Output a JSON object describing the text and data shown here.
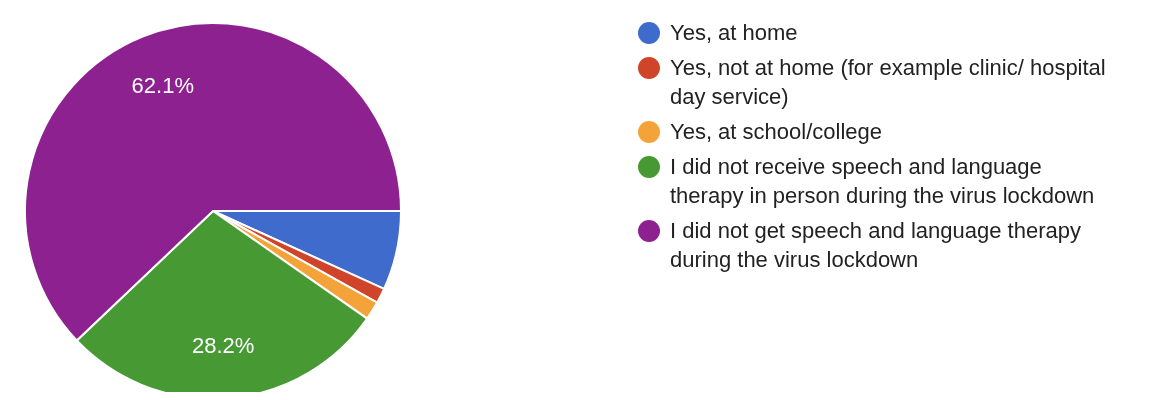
{
  "chart_data": {
    "type": "pie",
    "categories": [
      "Yes, at home",
      "Yes, not at home (for example clinic/ hospital day service)",
      "Yes, at school/college",
      "I did not receive speech and language therapy in person during the virus lockdown",
      "I did not get speech and language therapy during the virus lockdown"
    ],
    "values": [
      6.8,
      1.3,
      1.6,
      28.2,
      62.1
    ],
    "colors": [
      "#3f6bcc",
      "#d0452a",
      "#f4a33a",
      "#479a33",
      "#8e2190"
    ],
    "value_labels": [
      null,
      null,
      null,
      "28.2%",
      "62.1%"
    ],
    "legend": "right"
  }
}
